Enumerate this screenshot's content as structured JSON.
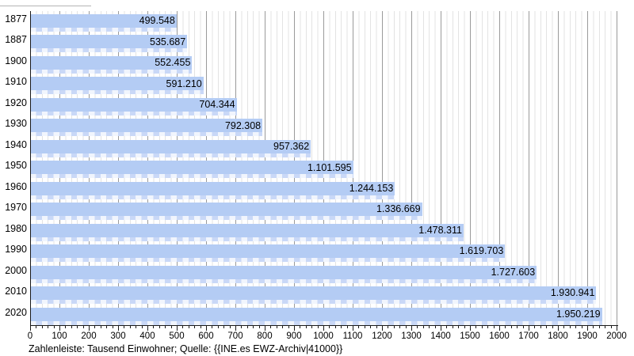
{
  "chart_data": {
    "type": "bar",
    "orientation": "horizontal",
    "title": "",
    "xlabel": "",
    "ylabel": "",
    "unit": "Tausend Einwohner",
    "categories": [
      "1877",
      "1887",
      "1900",
      "1910",
      "1920",
      "1930",
      "1940",
      "1950",
      "1960",
      "1970",
      "1980",
      "1990",
      "2000",
      "2010",
      "2020"
    ],
    "values": [
      499548,
      535687,
      552455,
      591210,
      704344,
      792308,
      957362,
      1101595,
      1244153,
      1336669,
      1478311,
      1619703,
      1727603,
      1930941,
      1950219
    ],
    "display_values": [
      "499.548",
      "535.687",
      "552.455",
      "591.210",
      "704.344",
      "792.308",
      "957.362",
      "1.101.595",
      "1.244.153",
      "1.336.669",
      "1.478.311",
      "1.619.703",
      "1.727.603",
      "1.930.941",
      "1.950.219"
    ],
    "xlim": [
      0,
      2000
    ],
    "x_tick_step": 100,
    "x_minor_tick_step": 20,
    "x_tick_labels": [
      "0",
      "100",
      "200",
      "300",
      "400",
      "500",
      "600",
      "700",
      "800",
      "900",
      "1000",
      "1100",
      "1200",
      "1300",
      "1400",
      "1500",
      "1600",
      "1700",
      "1800",
      "1900",
      "2000"
    ],
    "grid": "vertical, major every 100 and minor every 20",
    "legend": "none",
    "caption": "Zahlenleiste: Tausend Einwohner; Quelle: {{INE.es EWZ-Archiv|41000}}",
    "colors": {
      "bar_fill": "#b4ccf4",
      "ruler_light": "#f1f5fd",
      "ruler_blue": "#c9d8f7",
      "grid_major": "#9a9a9a",
      "grid_minor": "#e3e3e3",
      "axis": "#1a1a1a",
      "text": "#000000",
      "background": "#ffffff"
    }
  }
}
